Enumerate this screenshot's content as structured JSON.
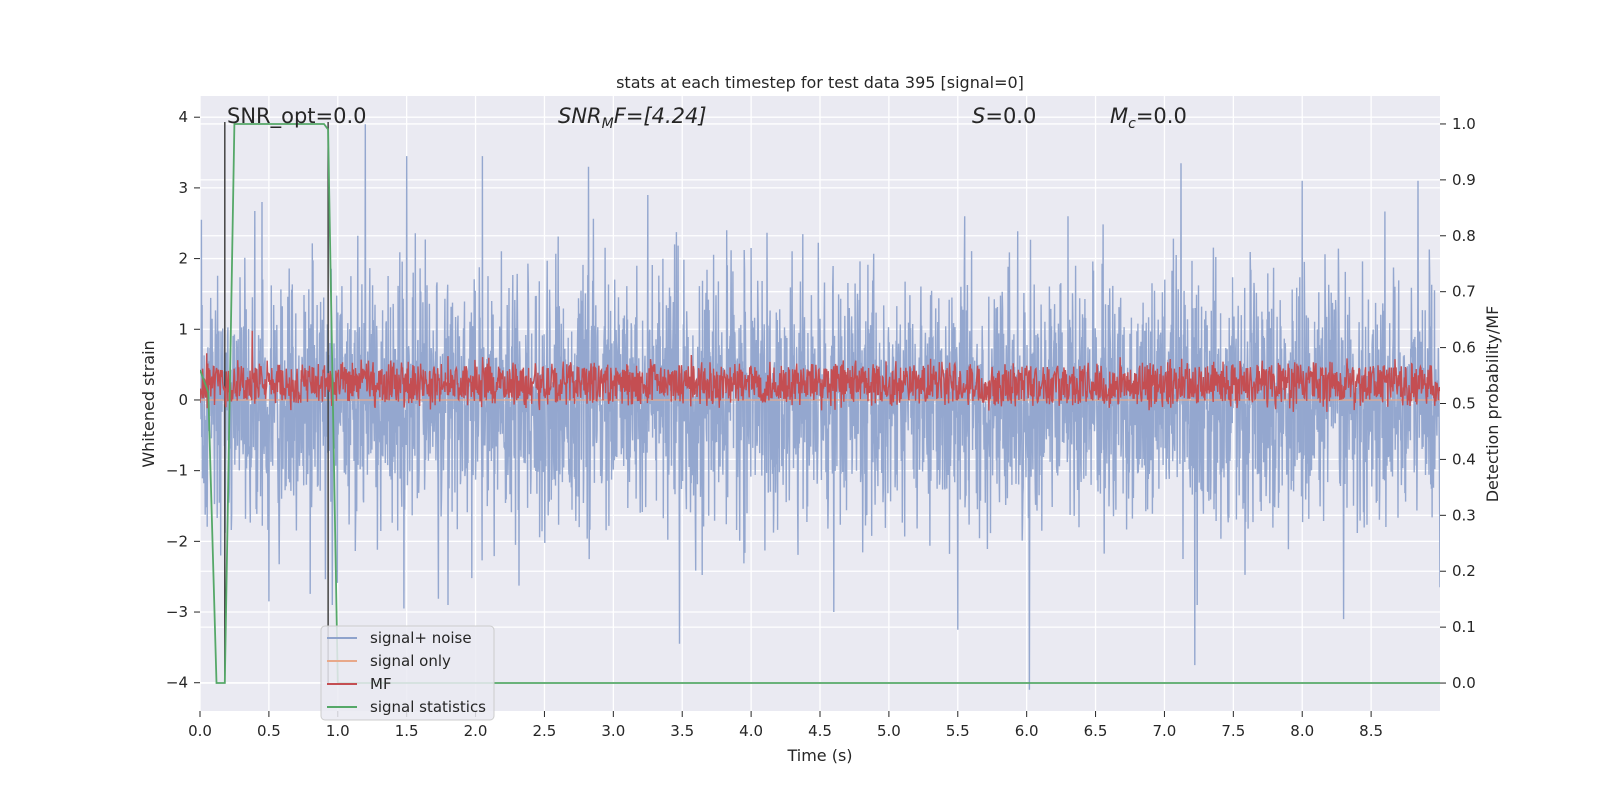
{
  "chart_data": {
    "type": "line",
    "title": "stats at each timestep for test data 395 [signal=0]",
    "xlabel": "Time (s)",
    "ylabel_left": "Whitened strain",
    "ylabel_right": "Detection probability/MF",
    "xlim": [
      0.0,
      9.0
    ],
    "ylim_left": [
      -4.4,
      4.3
    ],
    "ylim_right": [
      -0.05,
      1.05
    ],
    "x_ticks": [
      0.0,
      0.5,
      1.0,
      1.5,
      2.0,
      2.5,
      3.0,
      3.5,
      4.0,
      4.5,
      5.0,
      5.5,
      6.0,
      6.5,
      7.0,
      7.5,
      8.0,
      8.5
    ],
    "x_tick_labels": [
      "0.0",
      "0.5",
      "1.0",
      "1.5",
      "2.0",
      "2.5",
      "3.0",
      "3.5",
      "4.0",
      "4.5",
      "5.0",
      "5.5",
      "6.0",
      "6.5",
      "7.0",
      "7.5",
      "8.0",
      "8.5"
    ],
    "y_left_ticks": [
      4,
      3,
      2,
      1,
      0,
      -1,
      -2,
      -3,
      -4
    ],
    "y_left_tick_labels": [
      "4",
      "3",
      "2",
      "1",
      "0",
      "−1",
      "−2",
      "−3",
      "−4"
    ],
    "y_right_ticks": [
      1.0,
      0.9,
      0.8,
      0.7,
      0.6,
      0.5,
      0.4,
      0.3,
      0.2,
      0.1,
      0.0
    ],
    "y_right_tick_labels": [
      "1.0",
      "0.9",
      "0.8",
      "0.7",
      "0.6",
      "0.5",
      "0.4",
      "0.3",
      "0.2",
      "0.1",
      "0.0"
    ],
    "grid": true,
    "legend_placement": "lower-left",
    "annotations": {
      "snr_opt": "SNR_opt=0.0",
      "snr_mf_base": "SNR",
      "snr_mf_sub": "M",
      "snr_mf_rest": "F=[4.24]",
      "s_base": "S",
      "s_rest": "=0.0",
      "mc_base": "M",
      "mc_sub": "c",
      "mc_rest": "=0.0"
    },
    "series": [
      {
        "name": "signal+ noise",
        "axis": "left",
        "color": "#8fa3cc",
        "description_style": "dense noise",
        "rms": 0.85,
        "peaks": [
          [
            0.01,
            2.55
          ],
          [
            0.45,
            2.8
          ],
          [
            1.2,
            3.9
          ],
          [
            1.5,
            3.45
          ],
          [
            2.05,
            3.45
          ],
          [
            2.82,
            3.3
          ],
          [
            3.25,
            2.9
          ],
          [
            5.55,
            2.6
          ],
          [
            6.3,
            2.6
          ],
          [
            7.12,
            3.35
          ],
          [
            8.0,
            3.1
          ],
          [
            8.84,
            3.1
          ]
        ],
        "troughs": [
          [
            0.15,
            -2.2
          ],
          [
            0.5,
            -2.85
          ],
          [
            1.48,
            -2.95
          ],
          [
            3.48,
            -3.45
          ],
          [
            4.6,
            -3.0
          ],
          [
            5.5,
            -3.25
          ],
          [
            6.02,
            -4.1
          ],
          [
            7.22,
            -3.75
          ],
          [
            8.3,
            -3.1
          ],
          [
            9.0,
            -2.65
          ]
        ]
      },
      {
        "name": "signal only",
        "axis": "left",
        "color": "#e8a88a",
        "values": "zero"
      },
      {
        "name": "MF",
        "axis": "right",
        "color": "#c44e52",
        "mean": 0.535,
        "range": [
          0.5,
          0.57
        ],
        "peaks": [
          [
            0.38,
            0.63
          ],
          [
            0.05,
            0.59
          ]
        ]
      },
      {
        "name": "signal statistics",
        "axis": "right",
        "color": "#55a868",
        "x": [
          0.0,
          0.06,
          0.12,
          0.18,
          0.25,
          0.9,
          0.93,
          1.0,
          9.0
        ],
        "y": [
          0.56,
          0.52,
          0.0,
          0.0,
          1.0,
          1.0,
          0.99,
          0.0,
          0.0
        ]
      }
    ],
    "vertical_markers": [
      0.18,
      0.93
    ]
  }
}
